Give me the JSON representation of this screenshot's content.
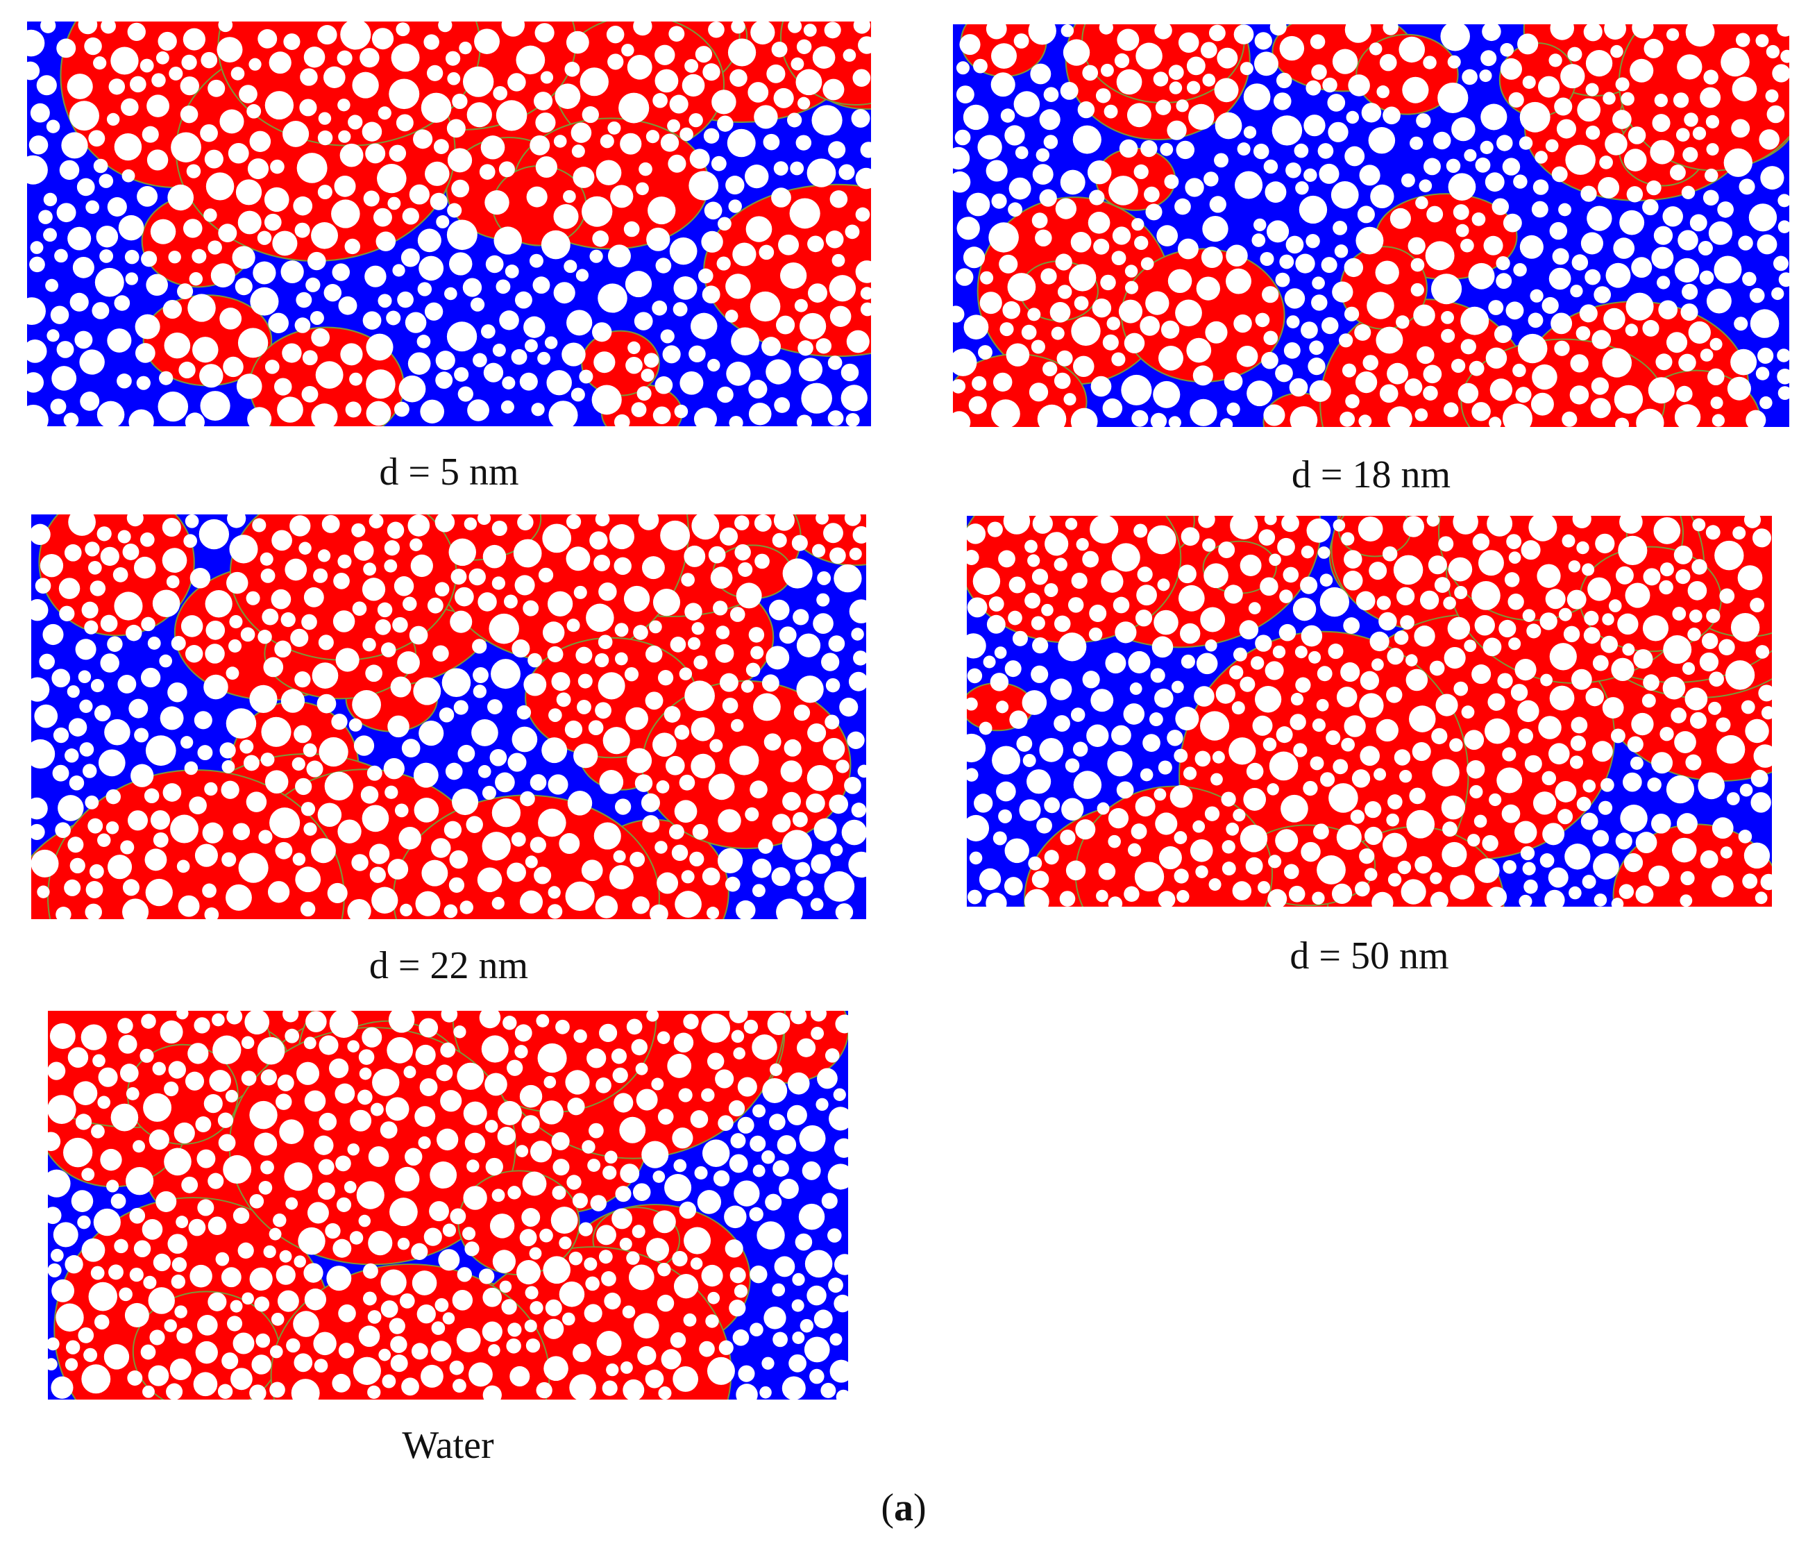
{
  "figure": {
    "label_open": "(",
    "label_letter": "a",
    "label_close": ")",
    "colors": {
      "phase_a": "#ff0000",
      "phase_b": "#0000ff",
      "grain": "#ffffff",
      "interface": "#7a9a3a"
    },
    "panels": [
      {
        "caption": "d = 5 nm",
        "seed": 11,
        "red_fraction": 0.35
      },
      {
        "caption": "d = 18 nm",
        "seed": 23,
        "red_fraction": 0.4
      },
      {
        "caption": "d = 22 nm",
        "seed": 37,
        "red_fraction": 0.45
      },
      {
        "caption": "d = 50 nm",
        "seed": 41,
        "red_fraction": 0.52
      },
      {
        "caption": "Water",
        "seed": 53,
        "red_fraction": 0.62
      }
    ]
  }
}
